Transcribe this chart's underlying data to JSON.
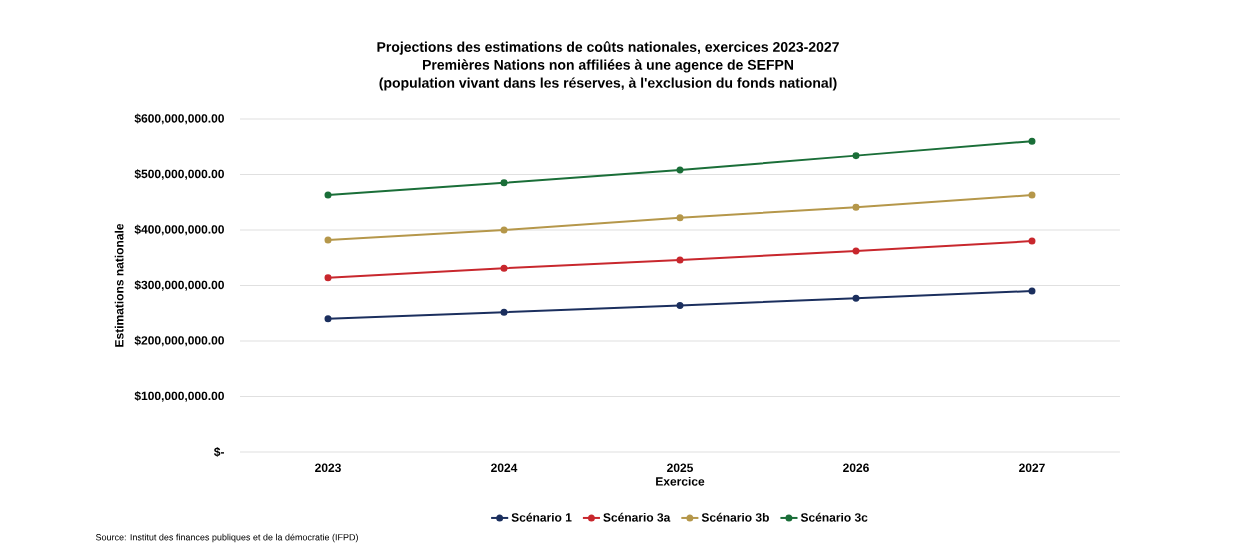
{
  "chart_data": {
    "type": "line",
    "title": "Projections des estimations de coûts nationales, exercices 2023-2027",
    "subtitle": "Premières Nations non affiliées à une agence de SEFPN",
    "annotations": [
      "(population vivant dans les réserves, à l'exclusion du fonds national)",
      "Source: Institut des finances publiques et de la démocratie (IFPD)"
    ],
    "xlabel": "Exercice",
    "ylabel": "Estimations nationale",
    "categories": [
      "2023",
      "2024",
      "2025",
      "2026",
      "2027"
    ],
    "series": [
      {
        "name": "Scénario 1",
        "color": "#1b2f5e",
        "values": [
          240000000,
          252000000,
          264000000,
          277000000,
          290000000
        ]
      },
      {
        "name": "Scénario 3a",
        "color": "#c8272d",
        "values": [
          314000000,
          331000000,
          346000000,
          362000000,
          380000000
        ]
      },
      {
        "name": "Scénario 3b",
        "color": "#b5974a",
        "values": [
          382000000,
          400000000,
          422000000,
          441000000,
          463000000
        ]
      },
      {
        "name": "Scénario 3c",
        "color": "#1a6e38",
        "values": [
          463000000,
          485000000,
          508000000,
          534000000,
          560000000
        ]
      }
    ],
    "ylim": [
      0,
      600000000
    ],
    "yticks": [
      {
        "value": 0,
        "label": "$-"
      },
      {
        "value": 100000000,
        "label": "$100,000,000.00"
      },
      {
        "value": 200000000,
        "label": "$200,000,000.00"
      },
      {
        "value": 300000000,
        "label": "$300,000,000.00"
      },
      {
        "value": 400000000,
        "label": "$400,000,000.00"
      },
      {
        "value": 500000000,
        "label": "$500,000,000.00"
      },
      {
        "value": 600000000,
        "label": "$600,000,000.00"
      }
    ],
    "grid": "y",
    "legend": "bottom",
    "marker": "circle",
    "line_style": "solid"
  }
}
